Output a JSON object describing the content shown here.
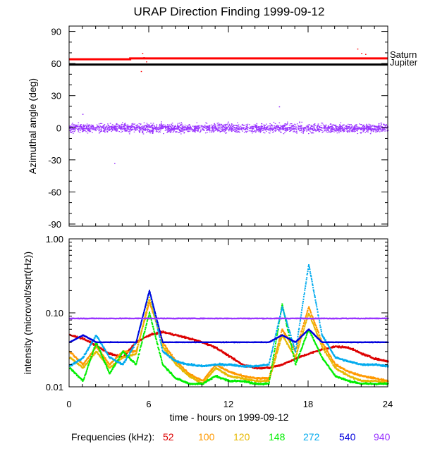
{
  "title": "URAP Direction Finding  1999-09-12",
  "chart_data": [
    {
      "type": "scatter",
      "ylabel": "Azimuthal angle (deg)",
      "xlim": [
        0,
        24
      ],
      "ylim": [
        -92,
        95
      ],
      "yticks": [
        90,
        60,
        30,
        0,
        -30,
        -60,
        -90
      ],
      "reference_lines": [
        {
          "name": "Saturn",
          "y": [
            64.5,
            64.5
          ],
          "x": [
            0,
            24
          ],
          "color": "#ff0000",
          "step_at_x": 4.6,
          "y_before": 64.0,
          "y_after": 64.8
        },
        {
          "name": "Jupiter",
          "y": [
            59,
            59
          ],
          "x": [
            0,
            24
          ],
          "color": "#000000"
        }
      ],
      "series": [
        {
          "color": "#9933ff",
          "center": 0,
          "spread": 7,
          "x_range": [
            0,
            24
          ]
        }
      ],
      "outliers": [
        {
          "x": 5.5,
          "y": 70
        },
        {
          "x": 5.6,
          "y": 66
        },
        {
          "x": 5.8,
          "y": 62
        },
        {
          "x": 5.4,
          "y": 53
        },
        {
          "x": 21.7,
          "y": 74
        },
        {
          "x": 22.0,
          "y": 70
        },
        {
          "x": 22.3,
          "y": 69
        },
        {
          "x": 3.4,
          "y": -33
        },
        {
          "x": 1.0,
          "y": 13
        },
        {
          "x": 15.8,
          "y": 20
        }
      ]
    },
    {
      "type": "line",
      "ylabel": "intensity (microvolt/sqrt(Hz))",
      "xlabel": "time - hours on 1999-09-12",
      "xlim": [
        0,
        24
      ],
      "ylim_log": [
        0.01,
        1.0
      ],
      "yticks": [
        1.0,
        0.1,
        0.01
      ],
      "ytick_labels": [
        "1.00",
        "0.10",
        "0.01"
      ],
      "xticks": [
        0,
        6,
        12,
        18,
        24
      ],
      "series": [
        {
          "name": "52",
          "color": "#dd0000",
          "x": [
            0,
            1,
            2,
            3,
            4,
            5,
            6,
            7,
            8,
            9,
            10,
            11,
            12,
            13,
            14,
            15,
            16,
            17,
            18,
            19,
            20,
            21,
            22,
            23,
            24
          ],
          "y": [
            0.05,
            0.045,
            0.036,
            0.028,
            0.025,
            0.04,
            0.05,
            0.055,
            0.05,
            0.045,
            0.04,
            0.034,
            0.026,
            0.02,
            0.018,
            0.018,
            0.02,
            0.024,
            0.028,
            0.032,
            0.035,
            0.034,
            0.028,
            0.024,
            0.022
          ]
        },
        {
          "name": "100",
          "color": "#ff9900",
          "x": [
            0,
            1,
            2,
            3,
            4,
            5,
            6,
            7,
            8,
            9,
            10,
            11,
            12,
            13,
            14,
            15,
            16,
            17,
            18,
            19,
            20,
            21,
            22,
            23,
            24
          ],
          "y": [
            0.03,
            0.02,
            0.035,
            0.02,
            0.03,
            0.03,
            0.14,
            0.04,
            0.022,
            0.015,
            0.012,
            0.02,
            0.016,
            0.014,
            0.013,
            0.013,
            0.06,
            0.03,
            0.12,
            0.04,
            0.02,
            0.016,
            0.014,
            0.013,
            0.012
          ]
        },
        {
          "name": "120",
          "color": "#e6b800",
          "x": [
            0,
            1,
            2,
            3,
            4,
            5,
            6,
            7,
            8,
            9,
            10,
            11,
            12,
            13,
            14,
            15,
            16,
            17,
            18,
            19,
            20,
            21,
            22,
            23,
            24
          ],
          "y": [
            0.025,
            0.018,
            0.03,
            0.018,
            0.025,
            0.028,
            0.16,
            0.035,
            0.02,
            0.014,
            0.011,
            0.018,
            0.014,
            0.013,
            0.012,
            0.012,
            0.05,
            0.025,
            0.1,
            0.035,
            0.018,
            0.014,
            0.012,
            0.012,
            0.011
          ]
        },
        {
          "name": "148",
          "color": "#00ee00",
          "x": [
            0,
            1,
            2,
            3,
            4,
            5,
            6,
            7,
            8,
            9,
            10,
            11,
            12,
            13,
            14,
            15,
            16,
            17,
            18,
            19,
            20,
            21,
            22,
            23,
            24
          ],
          "y": [
            0.018,
            0.012,
            0.04,
            0.015,
            0.03,
            0.02,
            0.1,
            0.02,
            0.013,
            0.011,
            0.011,
            0.014,
            0.012,
            0.012,
            0.011,
            0.011,
            0.13,
            0.02,
            0.06,
            0.025,
            0.014,
            0.012,
            0.011,
            0.011,
            0.011
          ]
        },
        {
          "name": "272",
          "color": "#00aaee",
          "x": [
            0,
            1,
            2,
            3,
            4,
            5,
            6,
            7,
            8,
            9,
            10,
            11,
            12,
            13,
            14,
            15,
            16,
            17,
            18,
            19,
            20,
            21,
            22,
            23,
            24
          ],
          "y": [
            0.019,
            0.025,
            0.05,
            0.025,
            0.02,
            0.04,
            0.2,
            0.03,
            0.022,
            0.02,
            0.019,
            0.02,
            0.02,
            0.019,
            0.019,
            0.02,
            0.12,
            0.03,
            0.45,
            0.05,
            0.025,
            0.022,
            0.02,
            0.02,
            0.019
          ]
        },
        {
          "name": "540",
          "color": "#0000dd",
          "x": [
            0,
            1,
            2,
            3,
            4,
            5,
            6,
            7,
            8,
            9,
            10,
            11,
            12,
            13,
            14,
            15,
            16,
            17,
            18,
            19,
            20,
            21,
            22,
            23,
            24
          ],
          "y": [
            0.04,
            0.05,
            0.04,
            0.04,
            0.04,
            0.04,
            0.2,
            0.04,
            0.04,
            0.04,
            0.04,
            0.04,
            0.04,
            0.04,
            0.04,
            0.04,
            0.05,
            0.04,
            0.06,
            0.04,
            0.04,
            0.04,
            0.04,
            0.04,
            0.04
          ]
        },
        {
          "name": "940",
          "color": "#9933ff",
          "x": [
            0,
            1,
            2,
            3,
            4,
            5,
            6,
            7,
            8,
            9,
            10,
            11,
            12,
            13,
            14,
            15,
            16,
            17,
            18,
            19,
            20,
            21,
            22,
            23,
            24
          ],
          "y": [
            0.084,
            0.084,
            0.084,
            0.084,
            0.084,
            0.084,
            0.084,
            0.084,
            0.084,
            0.084,
            0.084,
            0.084,
            0.084,
            0.084,
            0.084,
            0.084,
            0.084,
            0.084,
            0.084,
            0.084,
            0.084,
            0.084,
            0.084,
            0.084,
            0.084
          ]
        }
      ]
    }
  ],
  "legend": {
    "label": "Frequencies (kHz):",
    "items": [
      {
        "text": "52",
        "color": "#dd0000"
      },
      {
        "text": "100",
        "color": "#ff9900"
      },
      {
        "text": "120",
        "color": "#e6b800"
      },
      {
        "text": "148",
        "color": "#00ee00"
      },
      {
        "text": "272",
        "color": "#00aaee"
      },
      {
        "text": "540",
        "color": "#0000dd"
      },
      {
        "text": "940",
        "color": "#9933ff"
      }
    ]
  }
}
